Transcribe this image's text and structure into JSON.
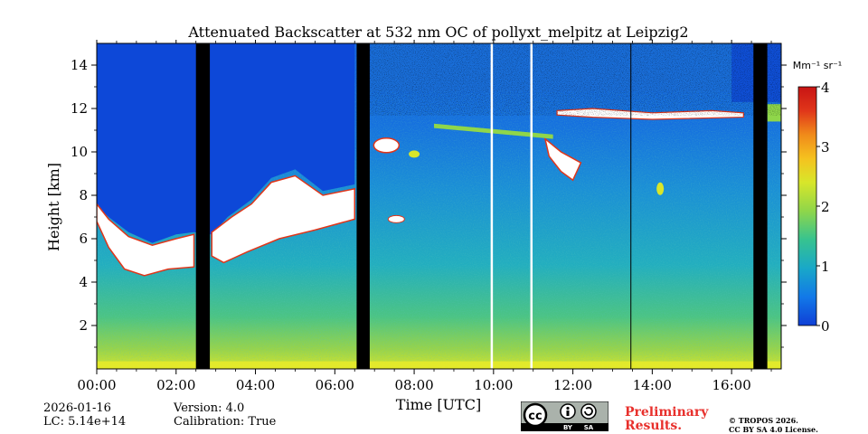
{
  "chart_data": {
    "type": "heatmap",
    "title": "Attenuated Backscatter at 532 nm OC of pollyxt_melpitz at Leipzig2",
    "xlabel": "Time [UTC]",
    "ylabel": "Height [km]",
    "xlim": [
      0,
      17.25
    ],
    "ylim": [
      0,
      15
    ],
    "x_ticks": [
      {
        "value": 0,
        "label": "00:00"
      },
      {
        "value": 2,
        "label": "02:00"
      },
      {
        "value": 4,
        "label": "04:00"
      },
      {
        "value": 6,
        "label": "06:00"
      },
      {
        "value": 8,
        "label": "08:00"
      },
      {
        "value": 10,
        "label": "10:00"
      },
      {
        "value": 12,
        "label": "12:00"
      },
      {
        "value": 14,
        "label": "14:00"
      },
      {
        "value": 16,
        "label": "16:00"
      }
    ],
    "y_ticks": [
      {
        "value": 2,
        "label": "2"
      },
      {
        "value": 4,
        "label": "4"
      },
      {
        "value": 6,
        "label": "6"
      },
      {
        "value": 8,
        "label": "8"
      },
      {
        "value": 10,
        "label": "10"
      },
      {
        "value": 12,
        "label": "12"
      },
      {
        "value": 14,
        "label": "14"
      }
    ],
    "colorbar": {
      "unit_label": "Mm⁻¹ sr⁻¹",
      "range": [
        0,
        4
      ],
      "ticks": [
        {
          "value": 0,
          "label": "0"
        },
        {
          "value": 1,
          "label": "1"
        },
        {
          "value": 2,
          "label": "2"
        },
        {
          "value": 3,
          "label": "3"
        },
        {
          "value": 4,
          "label": "4"
        }
      ],
      "colormap": [
        "#0f3fd6",
        "#1279e8",
        "#19a8c8",
        "#37c38f",
        "#8fd64a",
        "#d8e62a",
        "#f5c21f",
        "#f08a1a",
        "#e0361a",
        "#c81414"
      ]
    },
    "no_data_gaps_hours": [
      [
        2.5,
        2.85
      ],
      [
        6.55,
        6.88
      ],
      [
        16.55,
        16.9
      ]
    ],
    "white_lines_hours": [
      9.95,
      10.95
    ],
    "dark_lines_hours": [
      13.45
    ],
    "cloud_features": [
      {
        "name": "low mid-level cloud base",
        "start": 0,
        "end": 2.45,
        "height_km": 5.2
      },
      {
        "name": "morning cloud layer",
        "start": 2.9,
        "end": 6.5,
        "height_km": 6.5
      },
      {
        "name": "cirrus layer",
        "start": 11.6,
        "end": 16.3,
        "height_km": 11.7
      },
      {
        "name": "mid cloud",
        "start": 11.3,
        "end": 12.2,
        "height_km": 9.2
      }
    ]
  },
  "footer": {
    "date": "2026-01-16",
    "lc": "LC: 5.14e+14",
    "version": "Version: 4.0",
    "calibration": "Calibration: True",
    "preliminary_line1": "Preliminary",
    "preliminary_line2": "Results.",
    "copyright_line1": "© TROPOS 2026.",
    "copyright_line2": "CC BY SA 4.0 License.",
    "cc_label": "cc",
    "by_label": "BY",
    "sa_label": "SA"
  }
}
